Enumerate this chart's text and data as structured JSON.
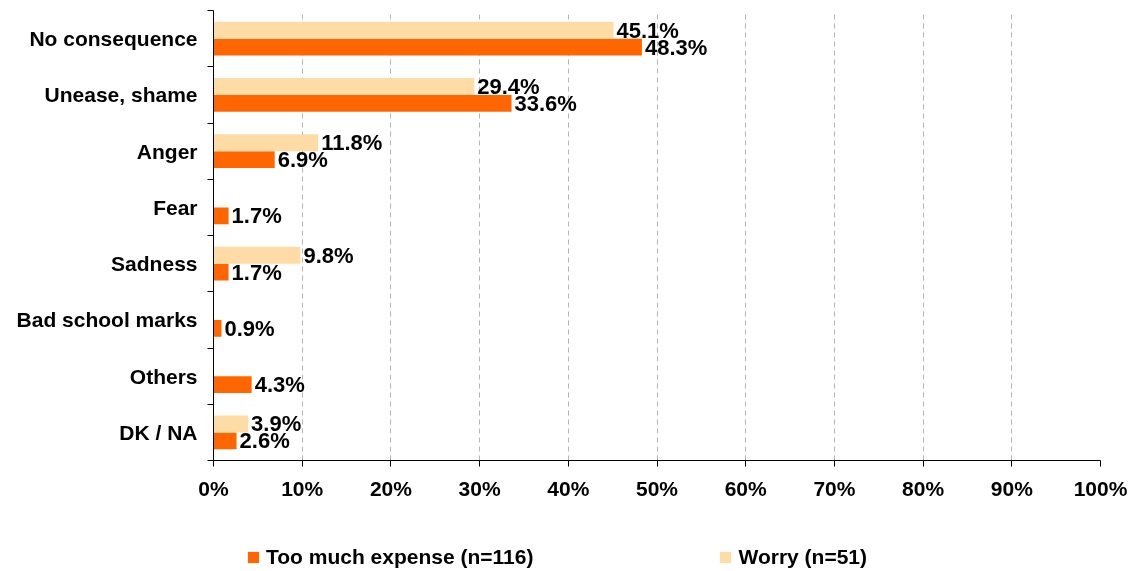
{
  "chart_data": {
    "type": "bar",
    "orientation": "horizontal",
    "categories": [
      "No consequence",
      "Unease, shame",
      "Anger",
      "Fear",
      "Sadness",
      "Bad school marks",
      "Others",
      "DK / NA"
    ],
    "series": [
      {
        "name": "Too much expense (n=116)",
        "color": "#ff6600",
        "values": [
          48.3,
          33.6,
          6.9,
          1.7,
          1.7,
          0.9,
          4.3,
          2.6
        ],
        "value_labels": [
          "48.3%",
          "33.6%",
          "6.9%",
          "1.7%",
          "1.7%",
          "0.9%",
          "4.3%",
          "2.6%"
        ]
      },
      {
        "name": "Worry (n=51)",
        "color": "#ffdba6",
        "values": [
          45.1,
          29.4,
          11.8,
          null,
          9.8,
          null,
          null,
          3.9
        ],
        "value_labels": [
          "45.1%",
          "29.4%",
          "11.8%",
          null,
          "9.8%",
          null,
          null,
          "3.9%"
        ]
      }
    ],
    "xlim": [
      0,
      100
    ],
    "xticks": [
      {
        "value": 0,
        "label": "0%"
      },
      {
        "value": 10,
        "label": "10%"
      },
      {
        "value": 20,
        "label": "20%"
      },
      {
        "value": 30,
        "label": "30%"
      },
      {
        "value": 40,
        "label": "40%"
      },
      {
        "value": 50,
        "label": "50%"
      },
      {
        "value": 60,
        "label": "60%"
      },
      {
        "value": 70,
        "label": "70%"
      },
      {
        "value": 80,
        "label": "80%"
      },
      {
        "value": 90,
        "label": "90%"
      },
      {
        "value": 100,
        "label": "100%"
      }
    ],
    "grid": "x",
    "legend": "bottom"
  }
}
